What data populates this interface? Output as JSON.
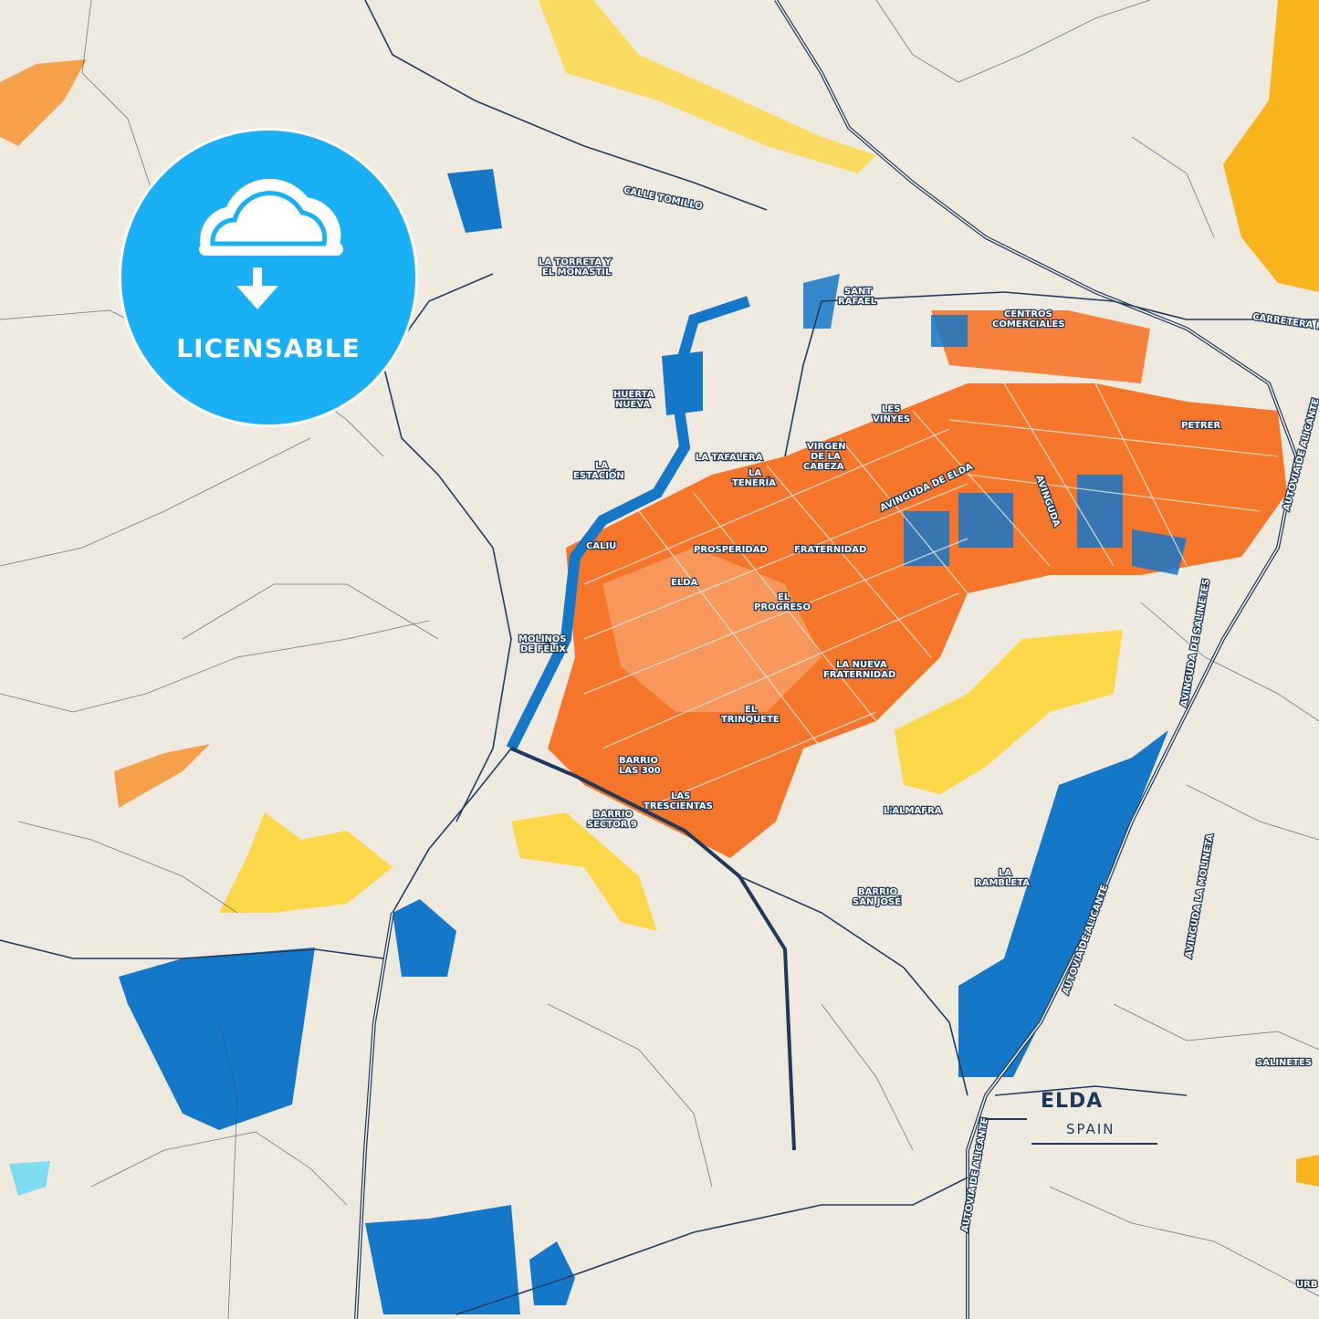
{
  "map": {
    "city": "ELDA",
    "country": "SPAIN",
    "badge_label": "LICENSABLE",
    "badge_icon": "cloud-download-icon",
    "colors": {
      "background": "#efeae0",
      "roads": "#1d3a5c",
      "urban_orange": "#f5762a",
      "blue": "#1577c8",
      "light_blue": "#7fdcf0",
      "yellow": "#fbd84a",
      "amber": "#f8b41c",
      "badge": "#1ab0f5"
    },
    "labels": {
      "calle_tomillo": "CALLE TOMILLO",
      "torreta_1": "LA TORRETA Y",
      "torreta_2": "EL MONASTIL",
      "sant_rafael_1": "SANT",
      "sant_rafael_2": "RAFAEL",
      "centros_1": "CENTROS",
      "centros_2": "COMERCIALES",
      "carretera": "CARRETERA PE",
      "huerta_1": "HUERTA",
      "huerta_2": "NUEVA",
      "vinyes_1": "LES",
      "vinyes_2": "VINYES",
      "petrer": "PETRER",
      "tafalera": "LA TAFALERA",
      "virgen_1": "VIRGEN",
      "virgen_2": "DE LA",
      "virgen_3": "CABEZA",
      "estacion_1": "LA",
      "estacion_2": "ESTACIÓN",
      "teneria_1": "LA",
      "teneria_2": "TENERÍA",
      "avinguda_elda": "AVINGUDA DE ELDA",
      "avinguda_2": "AVINGUDA",
      "autovia_1": "AUTOVIA DE ALICANTE",
      "caliu": "CALIU",
      "prosperidad": "PROSPERIDAD",
      "fraternidad": "FRATERNIDAD",
      "elda": "ELDA",
      "progreso_1": "EL",
      "progreso_2": "PROGRESO",
      "molinos_1": "MOLINOS",
      "molinos_2": "DE FÉLIX",
      "nueva_1": "LA NUEVA",
      "nueva_2": "FRATERNIDAD",
      "trinquete_1": "EL",
      "trinquete_2": "TRINQUETE",
      "las300_1": "BARRIO",
      "las300_2": "LAS 300",
      "trescientas_1": "LAS",
      "trescientas_2": "TRESCIENTAS",
      "sector9_1": "BARRIO",
      "sector9_2": "SECTOR 9",
      "almafra": "L'ALMAFRA",
      "rambleta_1": "LA",
      "rambleta_2": "RAMBLETA",
      "sanjose_1": "BARRIO",
      "sanjose_2": "SAN JOSÉ",
      "salinetes_av": "AVINGUDA DE SALINETES",
      "autovia_2": "AUTOVIA DE ALICANTE",
      "autovia_3": "AUTOVIA DE ALICANTE",
      "molineta": "AVINGUDA LA MOLINETA",
      "salinetes": "SALINETES",
      "urb": "URB"
    }
  }
}
